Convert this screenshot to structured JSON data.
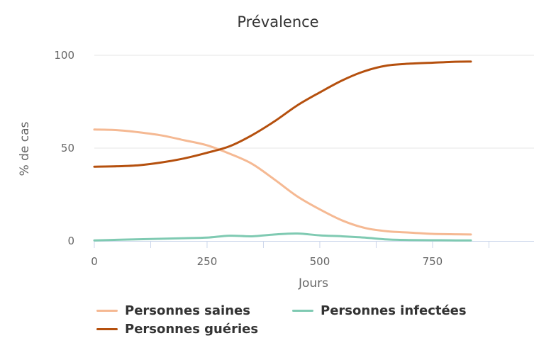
{
  "chart_data": {
    "type": "line",
    "title": "Prévalence",
    "xlabel": "Jours",
    "ylabel": "% de cas",
    "xlim": [
      0,
      975
    ],
    "ylim": [
      0,
      100
    ],
    "x_ticks": [
      "0",
      "250",
      "500",
      "750"
    ],
    "y_ticks": [
      "0",
      "50",
      "100"
    ],
    "grid": "horizontal",
    "legend_position": "bottom-left",
    "x": [
      0,
      50,
      100,
      150,
      200,
      250,
      300,
      350,
      400,
      450,
      500,
      550,
      600,
      650,
      700,
      750,
      800,
      835
    ],
    "series": [
      {
        "name": "Personnes saines",
        "color": "#f5b993",
        "values": [
          60,
          59.7,
          58.5,
          56.8,
          54.2,
          51.5,
          47,
          41.5,
          33,
          24,
          17,
          11,
          7,
          5.2,
          4.5,
          3.8,
          3.6,
          3.5
        ]
      },
      {
        "name": "Personnes infectées",
        "color": "#7fcab2",
        "values": [
          0.3,
          0.6,
          0.9,
          1.2,
          1.5,
          1.8,
          2.8,
          2.5,
          3.5,
          4,
          3,
          2.5,
          1.8,
          0.8,
          0.5,
          0.4,
          0.3,
          0.3
        ]
      },
      {
        "name": "Personnes guéries",
        "color": "#b5500e",
        "values": [
          40,
          40.2,
          40.8,
          42.3,
          44.5,
          47.5,
          51,
          57,
          64.5,
          73,
          80,
          86.5,
          91.5,
          94.5,
          95.5,
          96,
          96.5,
          96.6
        ]
      }
    ]
  }
}
